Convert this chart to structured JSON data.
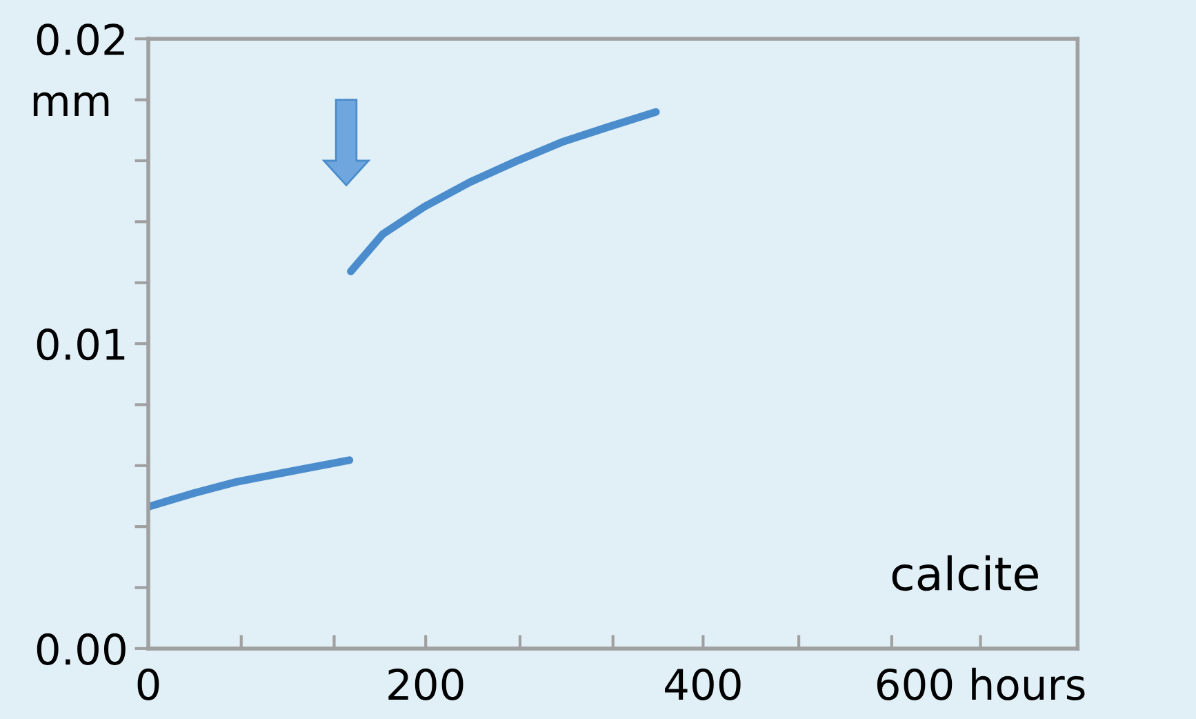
{
  "chart_data": {
    "type": "line",
    "ylabel": "mm",
    "annotations": [
      "calcite"
    ],
    "x": [
      0,
      33,
      63,
      99,
      145,
      null,
      146,
      169,
      199,
      232,
      265,
      298,
      331,
      366
    ],
    "series": [
      {
        "color": "#4a8ccc",
        "values": [
          0.00465,
          0.0051,
          0.00546,
          0.00578,
          0.00618,
          null,
          0.01237,
          0.01359,
          0.01449,
          0.0153,
          0.01598,
          0.01661,
          0.0171,
          0.0176
        ]
      }
    ],
    "xlim": [
      0,
      670
    ],
    "ylim": [
      0,
      0.02
    ],
    "xticks": [
      {
        "value": 0,
        "label": "0"
      },
      {
        "value": 67,
        "label": null
      },
      {
        "value": 134,
        "label": null
      },
      {
        "value": 200,
        "label": "200"
      },
      {
        "value": 268,
        "label": null
      },
      {
        "value": 335,
        "label": null
      },
      {
        "value": 400,
        "label": "400"
      },
      {
        "value": 469,
        "label": null
      },
      {
        "value": 536,
        "label": null
      },
      {
        "value": 600,
        "label": "600 hours"
      }
    ],
    "yticks": [
      {
        "value": 0,
        "label": "0.00"
      },
      {
        "value": 0.002,
        "label": null
      },
      {
        "value": 0.004,
        "label": null
      },
      {
        "value": 0.006,
        "label": null
      },
      {
        "value": 0.008,
        "label": null
      },
      {
        "value": 0.01,
        "label": "0.01"
      },
      {
        "value": 0.012,
        "label": null
      },
      {
        "value": 0.014,
        "label": null
      },
      {
        "value": 0.016,
        "label": null
      },
      {
        "value": 0.018,
        "label": null
      },
      {
        "value": 0.02,
        "label": "0.02"
      }
    ],
    "grid": false,
    "legend": false,
    "marker": "none",
    "line_style": "solid"
  }
}
